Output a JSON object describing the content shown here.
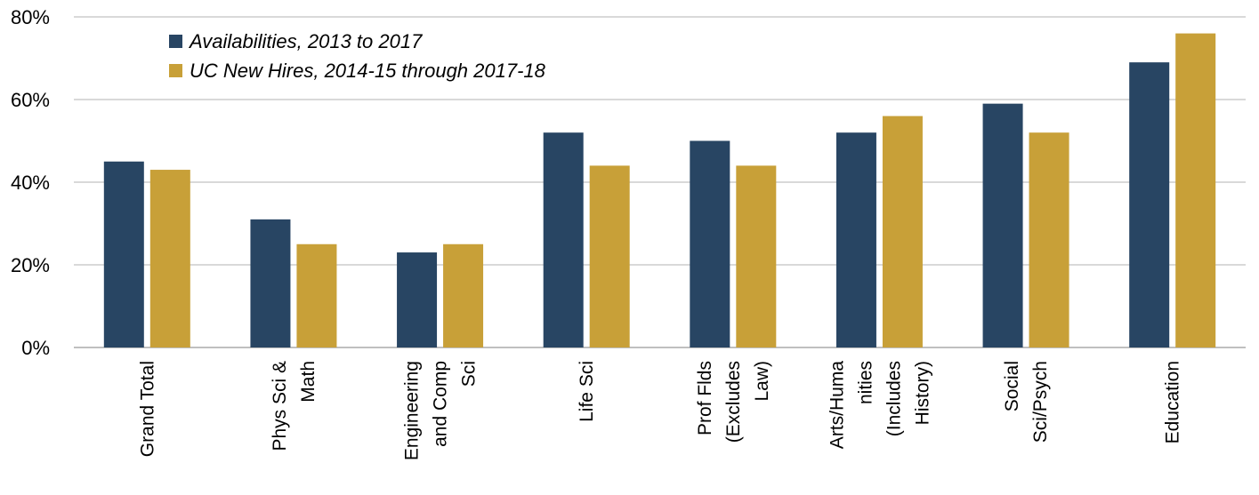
{
  "chart_data": {
    "type": "bar",
    "categories": [
      [
        "Grand Total"
      ],
      [
        "Phys Sci &",
        "Math"
      ],
      [
        "Engineering",
        "and Comp",
        "Sci"
      ],
      [
        "Life Sci"
      ],
      [
        "Prof Flds",
        "(Excludes",
        "Law)"
      ],
      [
        "Arts/Huma",
        "nities",
        "(Includes",
        "History)"
      ],
      [
        "Social",
        "Sci/Psych"
      ],
      [
        "Education"
      ]
    ],
    "series": [
      {
        "name": "Availabilities, 2013 to 2017",
        "color": "#284563",
        "values": [
          45,
          31,
          23,
          52,
          50,
          52,
          59,
          69
        ]
      },
      {
        "name": "UC New Hires, 2014-15 through 2017-18",
        "color": "#C8A038",
        "values": [
          43,
          25,
          25,
          44,
          44,
          56,
          52,
          76
        ]
      }
    ],
    "ylim": [
      0,
      80
    ],
    "yticks": [
      "0%",
      "20%",
      "40%",
      "60%",
      "80%"
    ],
    "ytick_values": [
      0,
      20,
      40,
      60,
      80
    ],
    "grid": true,
    "grid_color": "#d9d9d9",
    "legend_position": "top-left"
  }
}
